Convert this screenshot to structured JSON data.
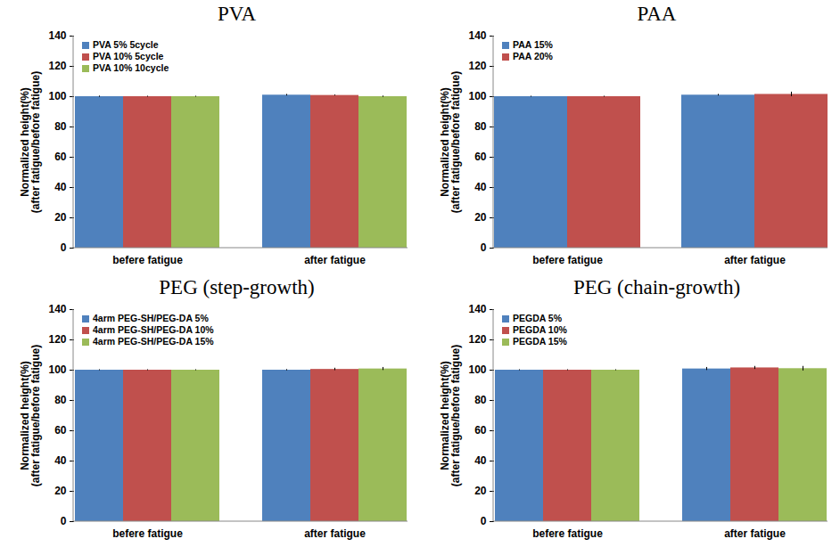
{
  "chart_data": [
    {
      "type": "bar",
      "title": "PVA",
      "y_label": "Normalized height(%)\n(after fatigue/before fatigue)",
      "categories": [
        "befere fatigue",
        "after fatigue"
      ],
      "series": [
        {
          "name": "PVA 5% 5cycle",
          "color": "#4f81bd",
          "values": [
            100,
            101
          ],
          "errors": [
            0.4,
            0.5
          ]
        },
        {
          "name": "PVA 10% 5cycle",
          "color": "#c0504d",
          "values": [
            100,
            100.8
          ],
          "errors": [
            0.3,
            0.3
          ]
        },
        {
          "name": "PVA 10% 10cycle",
          "color": "#9bbb59",
          "values": [
            100,
            100
          ],
          "errors": [
            0.3,
            0.4
          ]
        }
      ],
      "ylim": [
        0,
        140
      ],
      "yticks": [
        0,
        20,
        40,
        60,
        80,
        100,
        120,
        140
      ],
      "legend": "upper left"
    },
    {
      "type": "bar",
      "title": "PAA",
      "y_label": "Normalized height(%)\n(after fatigue/before fatigue)",
      "categories": [
        "befere fatigue",
        "after fatigue"
      ],
      "series": [
        {
          "name": "PAA 15%",
          "color": "#4f81bd",
          "values": [
            100,
            101
          ],
          "errors": [
            0.3,
            0.5
          ]
        },
        {
          "name": "PAA 20%",
          "color": "#c0504d",
          "values": [
            100,
            101.5
          ],
          "errors": [
            0.3,
            1.5
          ]
        }
      ],
      "ylim": [
        0,
        140
      ],
      "yticks": [
        0,
        20,
        40,
        60,
        80,
        100,
        120,
        140
      ],
      "legend": "upper left"
    },
    {
      "type": "bar",
      "title": "PEG (step-growth)",
      "y_label": "Normalized height(%)\n(after fatigue/before fatigue)",
      "categories": [
        "befere fatigue",
        "after fatigue"
      ],
      "series": [
        {
          "name": "4arm PEG-SH/PEG-DA 5%",
          "color": "#4f81bd",
          "values": [
            100,
            100
          ],
          "errors": [
            0.3,
            0.4
          ]
        },
        {
          "name": "4arm PEG-SH/PEG-DA 10%",
          "color": "#c0504d",
          "values": [
            100,
            100.5
          ],
          "errors": [
            0.3,
            0.8
          ]
        },
        {
          "name": "4arm PEG-SH/PEG-DA 15%",
          "color": "#9bbb59",
          "values": [
            100,
            100.8
          ],
          "errors": [
            0.3,
            1
          ]
        }
      ],
      "ylim": [
        0,
        140
      ],
      "yticks": [
        0,
        20,
        40,
        60,
        80,
        100,
        120,
        140
      ],
      "legend": "upper left"
    },
    {
      "type": "bar",
      "title": "PEG (chain-growth)",
      "y_label": "Normalized height(%)\n(after fatigue/before fatigue)",
      "categories": [
        "befere fatigue",
        "after fatigue"
      ],
      "series": [
        {
          "name": "PEGDA 5%",
          "color": "#4f81bd",
          "values": [
            100,
            100.8
          ],
          "errors": [
            0.3,
            1
          ]
        },
        {
          "name": "PEGDA 10%",
          "color": "#c0504d",
          "values": [
            100,
            101.5
          ],
          "errors": [
            0.3,
            1
          ]
        },
        {
          "name": "PEGDA 15%",
          "color": "#9bbb59",
          "values": [
            100,
            101
          ],
          "errors": [
            0.3,
            1.5
          ]
        }
      ],
      "ylim": [
        0,
        140
      ],
      "yticks": [
        0,
        20,
        40,
        60,
        80,
        100,
        120,
        140
      ],
      "legend": "upper left"
    }
  ]
}
